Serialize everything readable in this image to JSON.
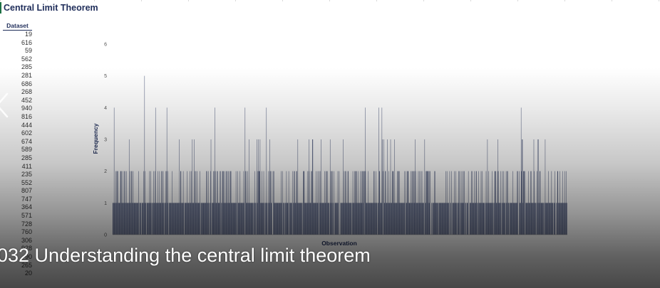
{
  "sheet": {
    "title": "Central Limit Theorem",
    "dataset_header": "Dataset",
    "dataset_values": [
      "19",
      "616",
      "59",
      "562",
      "285",
      "281",
      "686",
      "268",
      "452",
      "940",
      "816",
      "444",
      "602",
      "674",
      "589",
      "285",
      "411",
      "235",
      "552",
      "807",
      "747",
      "364",
      "571",
      "728",
      "760",
      "306",
      "928",
      "90",
      "265",
      "20"
    ]
  },
  "chart_data": {
    "type": "bar",
    "xlabel": "Observation",
    "ylabel": "Frequency",
    "ylim": [
      0,
      6
    ],
    "yticks": [
      "0",
      "1",
      "2",
      "3",
      "4",
      "5",
      "6"
    ],
    "bar_color": "#1f2d5a",
    "bar_count": 1000,
    "values": []
  },
  "video": {
    "caption": "032 Understanding the central limit theorem"
  }
}
